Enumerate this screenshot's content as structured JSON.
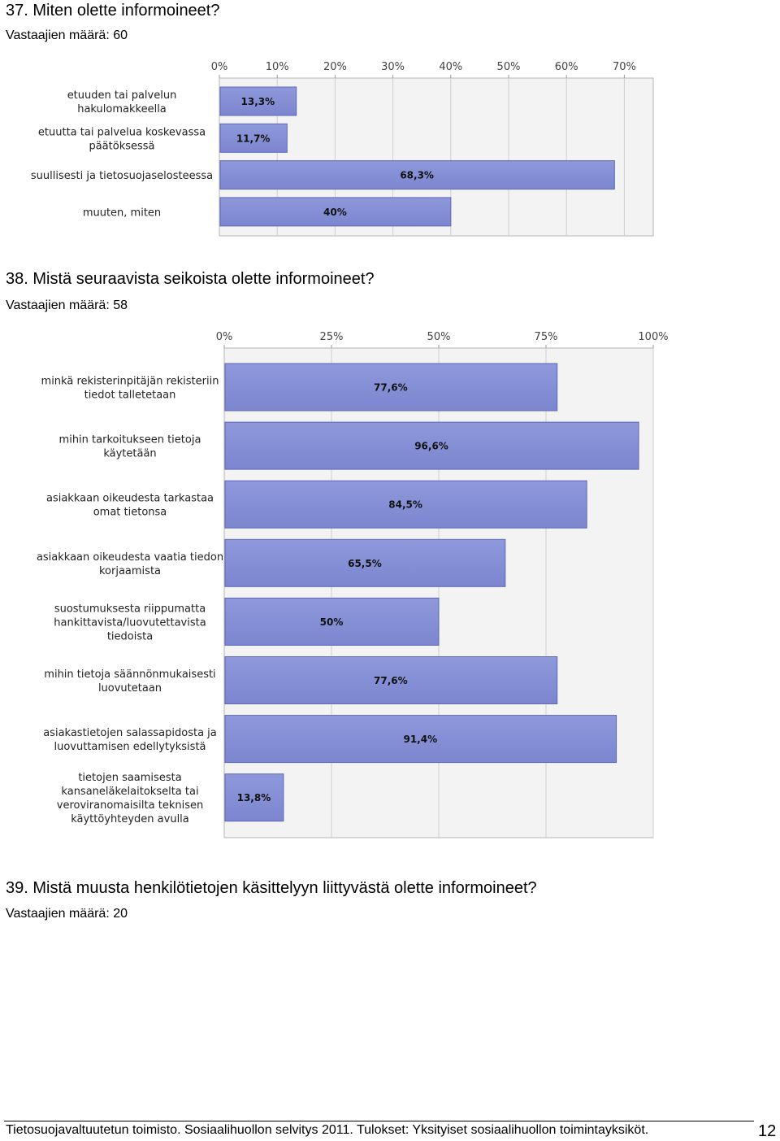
{
  "q37": {
    "title": "37. Miten olette informoineet?",
    "respondents": "Vastaajien määrä: 60"
  },
  "q38": {
    "title": "38. Mistä seuraavista seikoista olette informoineet?",
    "respondents": "Vastaajien määrä: 58"
  },
  "q39": {
    "title": "39. Mistä muusta henkilötietojen käsittelyyn liittyvästä olette informoineet?",
    "respondents": "Vastaajien määrä: 20"
  },
  "footer": {
    "text": "Tietosuojavaltuutetun toimisto. Sosiaalihuollon selvitys 2011. Tulokset: Yksityiset sosiaalihuollon toimintayksiköt.",
    "page_number": "12"
  },
  "colors": {
    "bar": "#7b86cf",
    "bar_dark": "#5d68b8",
    "plot_bg": "#f3f3f3",
    "grid": "#cfcfcf"
  },
  "chart_data": [
    {
      "type": "bar",
      "orientation": "horizontal",
      "categories": [
        [
          "etuuden tai palvelun",
          "hakulomakkeella"
        ],
        [
          "etuutta tai palvelua koskevassa",
          "päätöksessä"
        ],
        [
          "suullisesti ja tietosuojaselosteessa"
        ],
        [
          "muuten, miten"
        ]
      ],
      "values": [
        13.3,
        11.7,
        68.3,
        40
      ],
      "data_labels": [
        "13,3%",
        "11,7%",
        "68,3%",
        "40%"
      ],
      "x_ticks": [
        "0%",
        "10%",
        "20%",
        "30%",
        "40%",
        "50%",
        "60%",
        "70%"
      ],
      "xlim": [
        0,
        75
      ],
      "grid": true
    },
    {
      "type": "bar",
      "orientation": "horizontal",
      "categories": [
        [
          "minkä rekisterinpitäjän rekisteriin",
          "tiedot talletetaan"
        ],
        [
          "mihin tarkoitukseen tietoja",
          "käytetään"
        ],
        [
          "asiakkaan oikeudesta tarkastaa",
          "omat tietonsa"
        ],
        [
          "asiakkaan oikeudesta vaatia tiedon",
          "korjaamista"
        ],
        [
          "suostumuksesta riippumatta",
          "hankittavista/luovutettavista",
          "tiedoista"
        ],
        [
          "mihin tietoja säännönmukaisesti",
          "luovutetaan"
        ],
        [
          "asiakastietojen salassapidosta ja",
          "luovuttamisen edellytyksistä"
        ],
        [
          "tietojen saamisesta",
          "kansaneläkelaitokselta tai",
          "veroviranomaisilta teknisen",
          "käyttöyhteyden avulla"
        ]
      ],
      "values": [
        77.6,
        96.6,
        84.5,
        65.5,
        50,
        77.6,
        91.4,
        13.8
      ],
      "data_labels": [
        "77,6%",
        "96,6%",
        "84,5%",
        "65,5%",
        "50%",
        "77,6%",
        "91,4%",
        "13,8%"
      ],
      "x_ticks": [
        "0%",
        "25%",
        "50%",
        "75%",
        "100%"
      ],
      "xlim": [
        0,
        100
      ],
      "grid": true
    }
  ]
}
